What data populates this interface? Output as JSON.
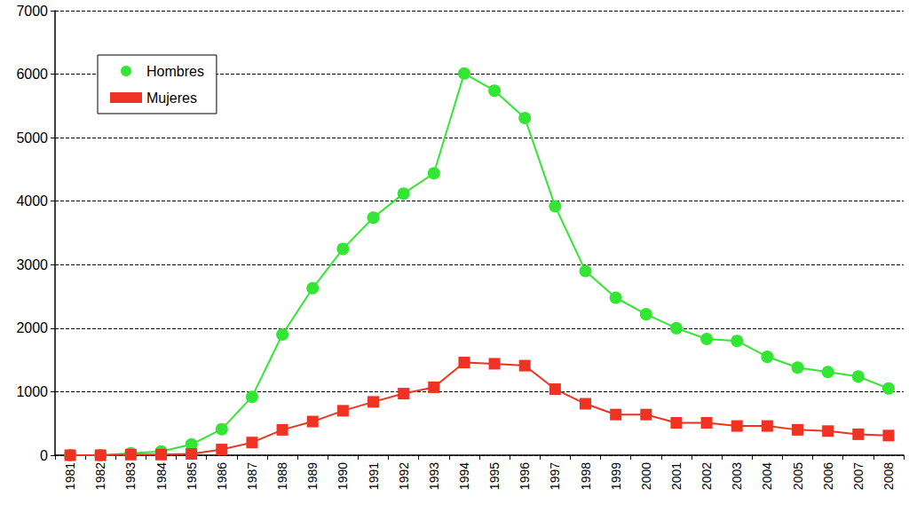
{
  "chart_data": {
    "type": "line",
    "categories": [
      "1981",
      "1982",
      "1983",
      "1984",
      "1985",
      "1986",
      "1987",
      "1988",
      "1989",
      "1990",
      "1991",
      "1992",
      "1993",
      "1994",
      "1995",
      "1996",
      "1997",
      "1998",
      "1999",
      "2000",
      "2001",
      "2002",
      "2003",
      "2004",
      "2005",
      "2006",
      "2007",
      "2008"
    ],
    "series": [
      {
        "name": "Hombres",
        "color": "#33e633",
        "marker": "circle",
        "values": [
          0,
          0,
          30,
          60,
          170,
          410,
          920,
          1900,
          2630,
          3250,
          3740,
          4120,
          4440,
          6010,
          5740,
          5310,
          3920,
          2900,
          2480,
          2220,
          2000,
          1830,
          1800,
          1550,
          1380,
          1310,
          1240,
          1050
        ]
      },
      {
        "name": "Mujeres",
        "color": "#ee3322",
        "marker": "square",
        "values": [
          0,
          0,
          10,
          10,
          20,
          90,
          200,
          400,
          530,
          700,
          840,
          970,
          1070,
          1460,
          1440,
          1410,
          1040,
          810,
          640,
          640,
          510,
          510,
          460,
          460,
          400,
          380,
          330,
          310
        ]
      }
    ],
    "ylim": [
      0,
      7000
    ],
    "yticks": [
      0,
      1000,
      2000,
      3000,
      4000,
      5000,
      6000,
      7000
    ],
    "grid": true,
    "legend": "upper left"
  }
}
